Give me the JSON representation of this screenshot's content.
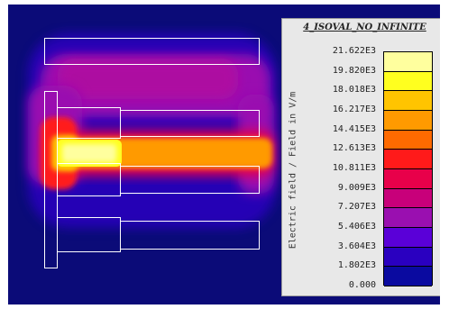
{
  "legend": {
    "title": "4_ISOVAL_NO_INFINITE",
    "axis_label": "Electric field / Field in V/m",
    "ticks": [
      "21.622E3",
      "19.820E3",
      "18.018E3",
      "16.217E3",
      "14.415E3",
      "12.613E3",
      "10.811E3",
      "9.009E3",
      "7.207E3",
      "5.406E3",
      "3.604E3",
      "1.802E3",
      "0.000"
    ],
    "colors": [
      "#ffff9e",
      "#ffff1f",
      "#ffc400",
      "#ff9a00",
      "#ff6a00",
      "#ff1a1a",
      "#e8004a",
      "#c8007a",
      "#9a0fb0",
      "#5a00d8",
      "#2a00c0",
      "#0a0aa0"
    ]
  },
  "field_colors": {
    "background": "#0b0b78",
    "outline": "#ffffff"
  }
}
